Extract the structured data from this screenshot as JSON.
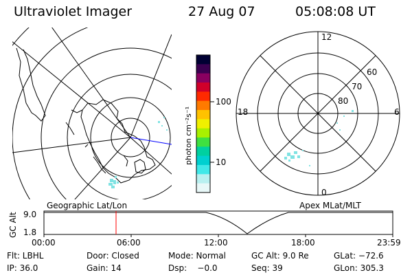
{
  "header": {
    "instrument": "Ultraviolet Imager",
    "date": "27 Aug 07",
    "time": "05:08:08 UT"
  },
  "colorbar": {
    "unit_label": "photon cm⁻²s⁻¹",
    "tick_labels": [
      "100",
      "10"
    ],
    "scale": "log",
    "colors": [
      "#000033",
      "#3a0050",
      "#8a0060",
      "#d0002a",
      "#ff2a00",
      "#ff7a00",
      "#ffc200",
      "#f0f000",
      "#a8f000",
      "#40e040",
      "#00d0a0",
      "#00d0d0",
      "#40e8e8",
      "#b8f0f0",
      "#e8f8f8"
    ]
  },
  "left_map": {
    "label": "Geographic Lat/Lon",
    "description_icon": "world-map-south-pole"
  },
  "right_map": {
    "label": "Apex  MLat/MLT",
    "mlt_labels": {
      "top": "12",
      "left": "18",
      "right": "6",
      "bottom": "0"
    },
    "mlat_labels": [
      "60",
      "70",
      "80"
    ]
  },
  "altitude_plot": {
    "ylabel": "GC Alt",
    "ytick_top": "9.0",
    "ytick_bottom": "1.8",
    "xticks": [
      "00:00",
      "06:00",
      "12:00",
      "18:00",
      "23:59"
    ],
    "marker_time": "05:08",
    "marker_color": "#ff0000"
  },
  "info": {
    "flt": "Flt: LBHL",
    "door": "Door: Closed",
    "mode": "Mode: Normal",
    "gc_alt": "GC Alt: 9.0 Re",
    "glat": "GLat: −72.6",
    "ip": "IP: 36.0",
    "gain": "Gain: 14",
    "dsp": "Dsp:    −0.0",
    "seq": "Seq: 39",
    "glon": "GLon: 305.3"
  }
}
